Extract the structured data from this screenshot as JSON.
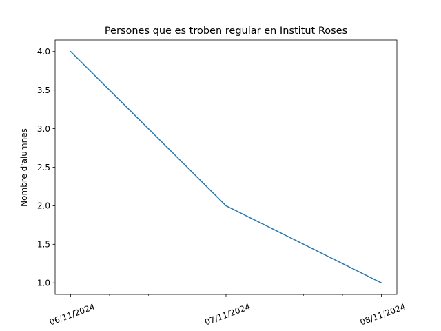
{
  "chart_data": {
    "type": "line",
    "title": "Persones que es troben regular en Institut Roses",
    "xlabel": "",
    "ylabel": "Nombre d'alumnes",
    "x": [
      "06/11/2024",
      "07/11/2024",
      "08/11/2024"
    ],
    "series": [
      {
        "values": [
          4.0,
          2.0,
          1.0
        ],
        "color": "#1f77b4"
      }
    ],
    "ylim": [
      0.85,
      4.15
    ],
    "yticks": [
      "1.0",
      "1.5",
      "2.0",
      "2.5",
      "3.0",
      "3.5",
      "4.0"
    ],
    "xtick_minor_per_interval": 3,
    "grid": false,
    "legend": "none"
  }
}
